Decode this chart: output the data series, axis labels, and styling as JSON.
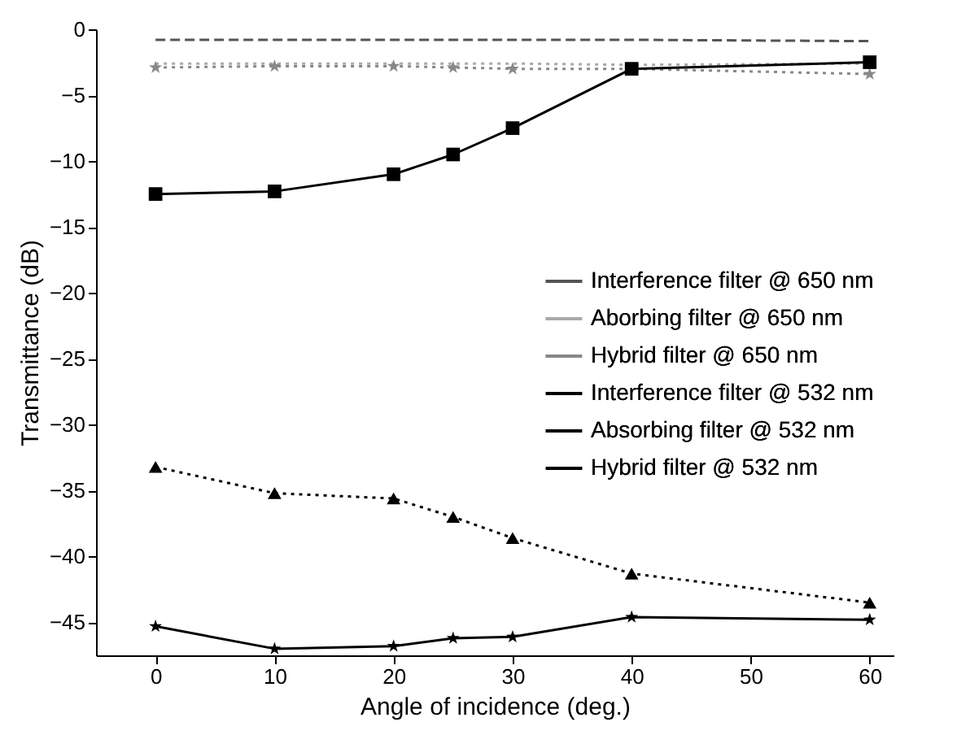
{
  "chart_data": {
    "type": "line",
    "xlabel": "Angle of incidence (deg.)",
    "ylabel": "Transmittance (dB)",
    "xlim": [
      -5,
      62
    ],
    "ylim": [
      -47.5,
      0
    ],
    "xticks": [
      0,
      10,
      20,
      30,
      40,
      50,
      60
    ],
    "yticks": [
      0,
      -5,
      -10,
      -15,
      -20,
      -25,
      -30,
      -35,
      -40,
      -45
    ],
    "x": [
      0,
      10,
      20,
      25,
      30,
      40,
      60
    ],
    "grid": false,
    "legend": "right",
    "series": [
      {
        "name": "Interference filter @ 650 nm",
        "color": "#555555",
        "line_style": "dashed",
        "marker": "none",
        "values": [
          -0.8,
          -0.8,
          -0.8,
          -0.8,
          -0.8,
          -0.8,
          -0.9
        ]
      },
      {
        "name": "Aborbing filter @ 650 nm",
        "color": "#aaaaaa",
        "line_style": "dotted",
        "marker": "none",
        "values": [
          -2.6,
          -2.6,
          -2.6,
          -2.6,
          -2.6,
          -2.7,
          -2.6
        ]
      },
      {
        "name": "Hybrid filter @ 650 nm",
        "color": "#888888",
        "line_style": "dotted",
        "marker": "star",
        "values": [
          -2.9,
          -2.8,
          -2.8,
          -2.9,
          -3.0,
          -3.0,
          -3.4
        ]
      },
      {
        "name": "Interference filter @ 532 nm",
        "color": "#000000",
        "line_style": "solid",
        "marker": "square",
        "values": [
          -12.5,
          -12.3,
          -11,
          -9.5,
          -7.5,
          -3,
          -2.5
        ]
      },
      {
        "name": "Absorbing filter @ 532 nm",
        "color": "#000000",
        "line_style": "dotted",
        "marker": "triangle",
        "values": [
          -33.2,
          -35.2,
          -35.6,
          -37,
          -38.6,
          -41.3,
          -43.5
        ]
      },
      {
        "name": "Hybrid filter @ 532 nm",
        "color": "#000000",
        "line_style": "solid",
        "marker": "star",
        "values": [
          -45.3,
          -47,
          -46.8,
          -46.2,
          -46.1,
          -44.6,
          -44.8
        ]
      }
    ]
  }
}
